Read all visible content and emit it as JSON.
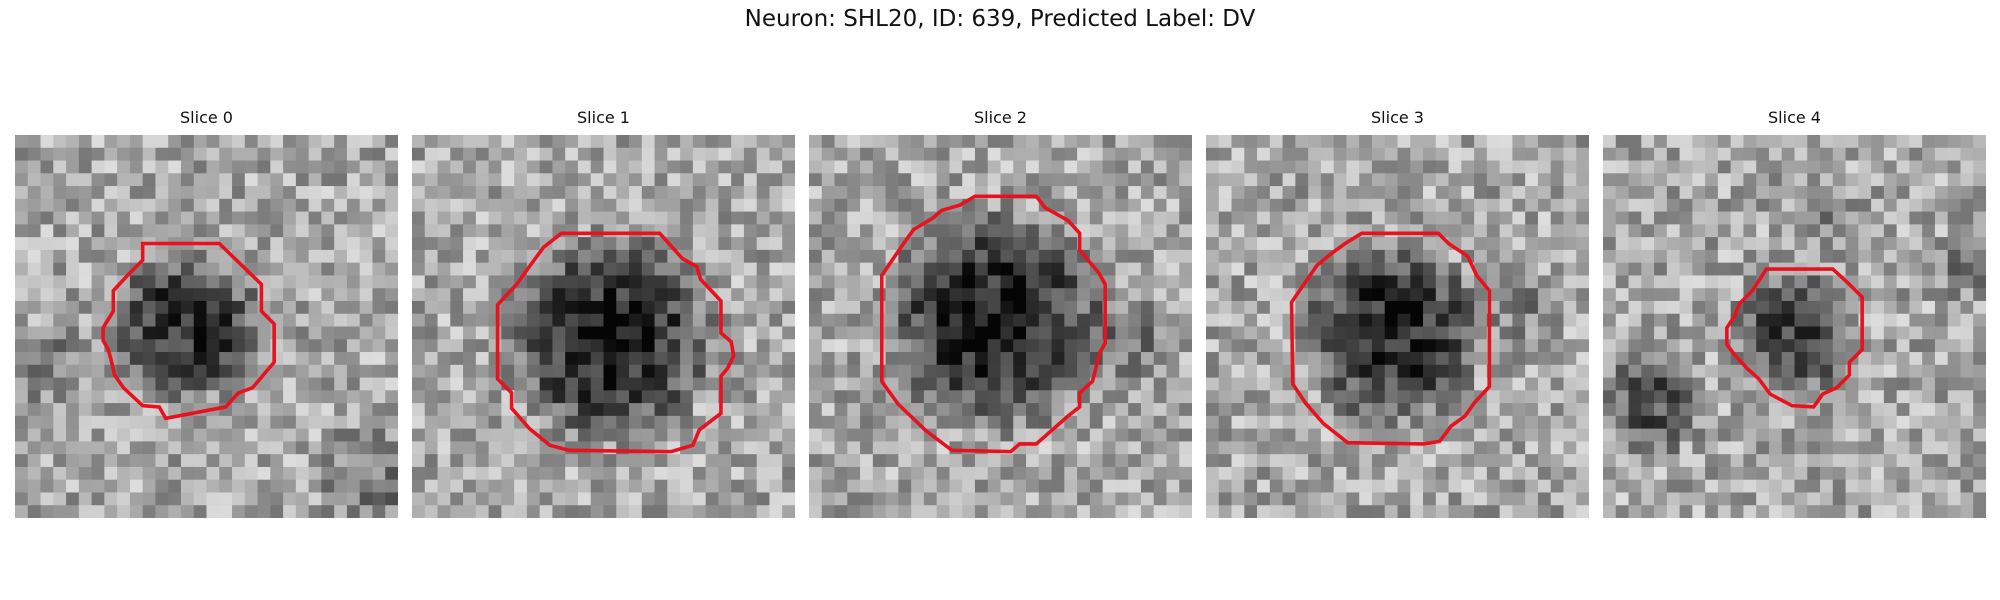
{
  "figure": {
    "title": "Neuron: SHL20, ID: 639, Predicted Label: DV"
  },
  "colors": {
    "outline": "#e8111e",
    "background": "#ffffff",
    "text": "#111111"
  },
  "image_style": "grayscale pixelated microscopy crop with red polygon outline of cell body",
  "panels": [
    {
      "title": "Slice 0"
    },
    {
      "title": "Slice 1"
    },
    {
      "title": "Slice 2"
    },
    {
      "title": "Slice 3"
    },
    {
      "title": "Slice 4"
    }
  ]
}
